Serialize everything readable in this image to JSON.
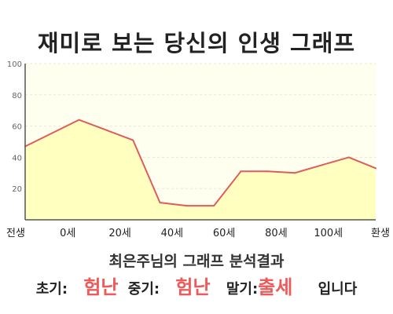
{
  "chart_data": {
    "type": "area",
    "title": "재미로 보는 당신의 인생 그래프",
    "categories": [
      "전생",
      "0세",
      "20세",
      "40세",
      "60세",
      "80세",
      "100세",
      "환생"
    ],
    "x": [
      -10,
      0,
      10,
      15,
      20,
      25,
      30,
      35,
      40,
      45,
      50,
      55
    ],
    "values": [
      47,
      64,
      51,
      11,
      9,
      9,
      31,
      31,
      30,
      35,
      40,
      33
    ],
    "ylim": [
      0,
      100
    ],
    "yticks": [
      20,
      40,
      60,
      80,
      100
    ],
    "grid": true,
    "colors": {
      "line": "#e05c5c",
      "fill": "#ffffc0",
      "plot_bg": "#fffff0",
      "grid": "#e8e8d8",
      "axis": "#555555"
    }
  },
  "result": {
    "caption": "최은주님의 그래프 분석결과",
    "early_label": "초기:",
    "early_value": "험난",
    "mid_label": "중기:",
    "mid_value": "험난",
    "late_label": "말기:",
    "late_value": "출세",
    "suffix": "입니다"
  }
}
